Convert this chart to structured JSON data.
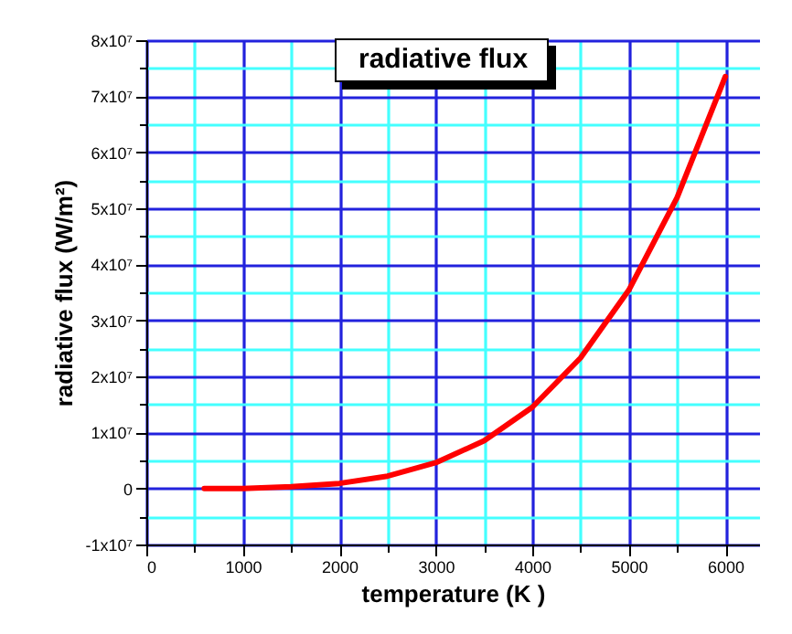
{
  "chart_data": {
    "type": "line",
    "title": "radiative flux",
    "xlabel": "temperature (K )",
    "ylabel": "radiative flux (W/m²)",
    "x": [
      600,
      1000,
      1500,
      2000,
      2500,
      3000,
      3500,
      4000,
      4500,
      5000,
      5500,
      6000
    ],
    "series": [
      {
        "color": "#ff0000",
        "values": [
          0,
          0,
          300000,
          900000,
          2200000,
          4600000,
          8500000,
          14500000,
          23300000,
          35400000,
          51900000,
          73500000
        ]
      }
    ],
    "xlim": [
      0,
      6350
    ],
    "xticks": [
      0,
      1000,
      2000,
      3000,
      4000,
      5000,
      6000,
      {
        "value": 500,
        "label": null
      },
      {
        "value": 1500,
        "label": null
      },
      {
        "value": 2500,
        "label": null
      },
      {
        "value": 3500,
        "label": null
      },
      {
        "value": 4500,
        "label": null
      },
      {
        "value": 5500,
        "label": null
      }
    ],
    "ylim": [
      -10000000,
      80000000
    ],
    "yticks": [
      {
        "value": -10000000,
        "label": "-1x10⁷"
      },
      0,
      {
        "value": 10000000,
        "label": "1x10⁷"
      },
      {
        "value": 20000000,
        "label": "2x10⁷"
      },
      {
        "value": 30000000,
        "label": "3x10⁷"
      },
      {
        "value": 40000000,
        "label": "4x10⁷"
      },
      {
        "value": 50000000,
        "label": "5x10⁷"
      },
      {
        "value": 60000000,
        "label": "6x10⁷"
      },
      {
        "value": 70000000,
        "label": "7x10⁷"
      },
      {
        "value": 80000000,
        "label": "8x10⁷"
      },
      {
        "value": -5000000,
        "label": null
      },
      {
        "value": 5000000,
        "label": null
      },
      {
        "value": 15000000,
        "label": null
      },
      {
        "value": 25000000,
        "label": null
      },
      {
        "value": 35000000,
        "label": null
      },
      {
        "value": 45000000,
        "label": null
      },
      {
        "value": 55000000,
        "label": null
      },
      {
        "value": 65000000,
        "label": null
      },
      {
        "value": 75000000,
        "label": null
      }
    ],
    "grid": true,
    "marker": "none",
    "line_style": "solid"
  }
}
